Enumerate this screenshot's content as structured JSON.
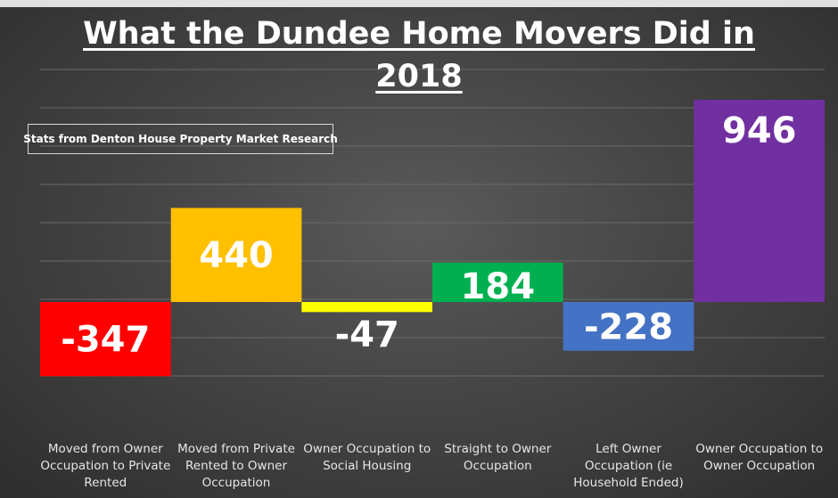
{
  "chart_data": {
    "type": "bar",
    "title": "What the Dundee Home Movers Did in 2018",
    "title_lines": [
      "What the Dundee Home Movers Did in",
      "2018"
    ],
    "subtitle": "Stats from Denton House Property Market Research",
    "categories": [
      "Moved from Owner Occupation to Private Rented",
      "Moved from Private Rented to Owner Occupation",
      "Owner Occupation to Social Housing",
      "Straight to Owner Occupation",
      "Left Owner Occupation (ie Household Ended)",
      "Owner Occupation to Owner Occupation"
    ],
    "category_lines": [
      [
        "Moved from Owner",
        "Occupation to Private",
        "Rented"
      ],
      [
        "Moved from Private",
        "Rented to Owner",
        "Occupation"
      ],
      [
        "Owner Occupation to",
        "Social Housing"
      ],
      [
        "Straight to Owner",
        "Occupation"
      ],
      [
        "Left Owner",
        "Occupation (ie",
        "Household Ended)"
      ],
      [
        "Owner Occupation to",
        "Owner Occupation"
      ]
    ],
    "values": [
      -347,
      440,
      -47,
      184,
      -228,
      946
    ],
    "value_labels": [
      "-347",
      "440",
      "-47",
      "184",
      "-228",
      "946"
    ],
    "colors": [
      "#ff0000",
      "#ffc000",
      "#ffff00",
      "#00b050",
      "#4472c4",
      "#7030a0"
    ],
    "ylim": [
      -500,
      1000
    ],
    "grid": true,
    "legend": "none"
  }
}
